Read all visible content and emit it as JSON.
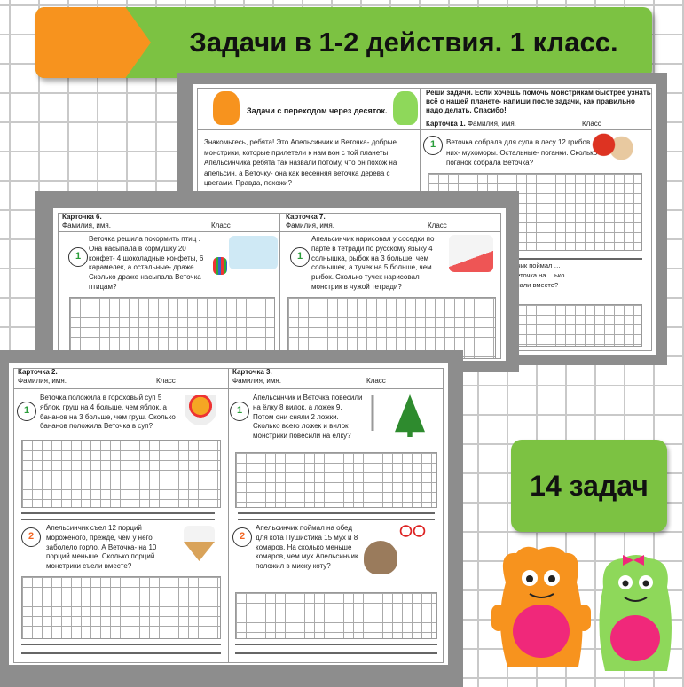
{
  "banner": {
    "title": "Задачи в 1-2 действия. 1 класс."
  },
  "badge_count": "14 задач",
  "colors": {
    "green": "#7cc242",
    "orange": "#f7931e",
    "pink": "#f0287a"
  },
  "back_page": {
    "heading": "Задачи  с переходом через десяток.",
    "intro": "Знакомьтесь, ребята! Это Апельсинчик и Веточка- добрые монстрики, которые прилетели к нам вон с той планеты. Апельсинчика ребята так назвали потому, что он похож на апельсин, а Веточку- она как весенняя веточка дерева с цветами. Правда, похожи?",
    "instructions": "Реши задачи. Если хочешь помочь монстрикам быстрее узнать всё о нашей планете- напиши после задачи, как правильно надо делать. Спасибо!",
    "card_label": "Карточка 1.",
    "name_label": "Фамилия, имя.",
    "class_label": "Класс",
    "task1_num": "1",
    "task1": "Веточка собрала для супа в лесу 12 грибов. 7 из них- мухоморы. Остальные- поганки. Сколько поганок собрала Веточка?",
    "task2_partial": "…ельсинчик поймал …анок, а Веточка на …ько банок …мали вместе?"
  },
  "mid_page": {
    "cards": [
      {
        "label": "Карточка 6.",
        "name_label": "Фамилия, имя.",
        "class_label": "Класс",
        "num": "1",
        "task": "Веточка решила покормить птиц . Она насыпала в кормушку  20 конфет- 4 шоколадные конфеты, 6 карамелек, а остальные- драже. Сколько драже насыпала Веточка птицам?"
      },
      {
        "label": "Карточка 7.",
        "name_label": "Фамилия, имя.",
        "class_label": "Класс",
        "num": "1",
        "task": "Апельсинчик нарисовал у соседки по парте в тетради по русскому языку  4 солнышка, рыбок на 3 больше, чем солнышек, а тучек на 5 больше, чем рыбок. Сколько тучек нарисовал  монстрик в чужой тетради?"
      }
    ]
  },
  "front_page": {
    "cards": [
      {
        "label": "Карточка 2.",
        "name_label": "Фамилия, имя.",
        "class_label": "Класс",
        "num1": "1",
        "task1": "Веточка положила в гороховый суп 5 яблок, груш на 4 больше, чем яблок, а бананов на 3 больше, чем груш. Сколько бананов положила Веточка в суп?",
        "num2": "2",
        "task2": "Апельсинчик съел 12 порций мороженого, прежде, чем у него заболело горло.  А Веточка- на 10 порций меньше. Сколько  порций монстрики съели вместе?"
      },
      {
        "label": "Карточка 3.",
        "name_label": "Фамилия, имя.",
        "class_label": "Класс",
        "num1": "1",
        "task1": "Апельсинчик и Веточка повесили на ёлку 8  вилок, а ложек 9. Потом они сняли 2 ложки. Сколько всего ложек и вилок монстрики повесили на ёлку?",
        "num2": "2",
        "task2": "Апельсинчик поймал на обед для кота  Пушистика 15 мух и 8 комаров. На сколько меньше комаров, чем мух Апельсинчик положил в миску коту?"
      }
    ]
  }
}
